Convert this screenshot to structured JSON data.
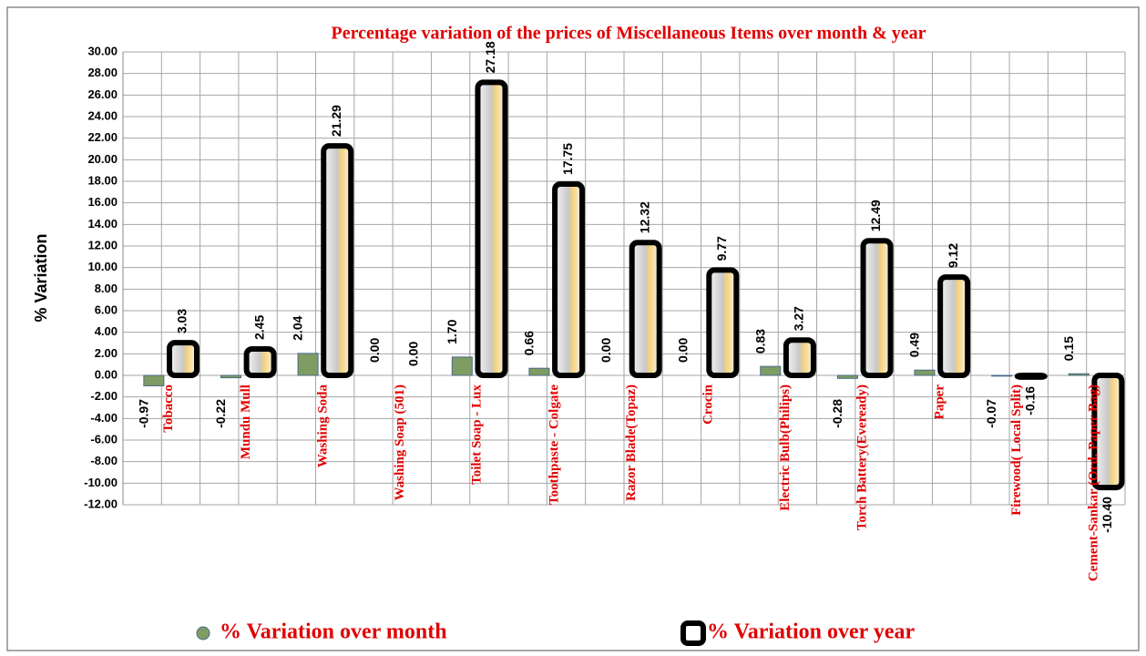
{
  "chart_data": {
    "type": "bar",
    "title": "Percentage variation of the prices of Miscellaneous Items over month & year",
    "y_label": "% Variation",
    "categories": [
      "Tobacco",
      "Mundu Mull",
      "Washing Soda",
      "Washing Soap (501)",
      "Toilet Soap - Lux",
      "Toothpaste - Colgate",
      "Razor Blade(Topaz)",
      "Crocin",
      "Electric Bulb(Philips)",
      "Torch Battery(Eveready)",
      "Paper",
      "Firewood( Local Split)",
      "Cement-Sankar (Ord. Paper Bag)"
    ],
    "series": [
      {
        "name": "% Variation over month",
        "color": "#7f9c62",
        "values": [
          -0.97,
          -0.22,
          2.04,
          0,
          1.7,
          0.66,
          0,
          0,
          0.83,
          -0.28,
          0.49,
          -0.07,
          0.15
        ],
        "value_labels": [
          "-0.97",
          "-0.22",
          "2.04",
          "0.00",
          "1.70",
          "0.66",
          "0.00",
          "0.00",
          "0.83",
          "-0.28",
          "0.49",
          "-0.07",
          "0.15"
        ]
      },
      {
        "name": "% Variation over year",
        "color": "#000000",
        "values": [
          3.03,
          2.45,
          21.29,
          0,
          27.18,
          17.75,
          12.32,
          9.77,
          3.27,
          12.49,
          9.12,
          -0.16,
          -10.4
        ],
        "value_labels": [
          "3.03",
          "2.45",
          "21.29",
          "0.00",
          "27.18",
          "17.75",
          "12.32",
          "9.77",
          "3.27",
          "12.49",
          "9.12",
          "-0.16",
          "-10.40"
        ]
      }
    ],
    "ylim": [
      -12,
      30
    ],
    "yticks": [
      {
        "value": -12,
        "label": "-12.00"
      },
      {
        "value": -10,
        "label": "-10.00"
      },
      {
        "value": -8,
        "label": "-8.00"
      },
      {
        "value": -6,
        "label": "-6.00"
      },
      {
        "value": -4,
        "label": "-4.00"
      },
      {
        "value": -2,
        "label": "-2.00"
      },
      {
        "value": 0,
        "label": "0.00"
      },
      {
        "value": 2,
        "label": "2.00"
      },
      {
        "value": 4,
        "label": "4.00"
      },
      {
        "value": 6,
        "label": "6.00"
      },
      {
        "value": 8,
        "label": "8.00"
      },
      {
        "value": 10,
        "label": "10.00"
      },
      {
        "value": 12,
        "label": "12.00"
      },
      {
        "value": 14,
        "label": "14.00"
      },
      {
        "value": 16,
        "label": "16.00"
      },
      {
        "value": 18,
        "label": "18.00"
      },
      {
        "value": 20,
        "label": "20.00"
      },
      {
        "value": 22,
        "label": "22.00"
      },
      {
        "value": 24,
        "label": "24.00"
      },
      {
        "value": 26,
        "label": "26.00"
      },
      {
        "value": 28,
        "label": "28.00"
      },
      {
        "value": 30,
        "label": "30.00"
      }
    ],
    "grid": true,
    "legend": "bottom"
  }
}
